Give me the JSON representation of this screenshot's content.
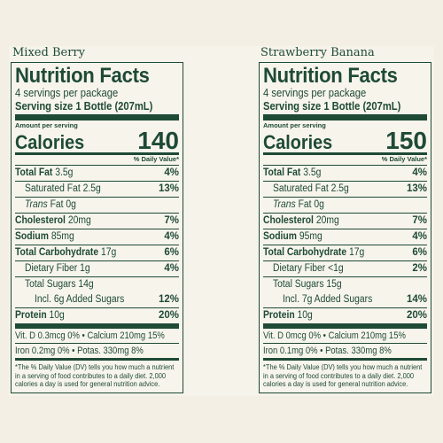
{
  "products": [
    {
      "flavor": "Mixed Berry",
      "title": "Nutrition Facts",
      "servings": "4 servings per package",
      "serving_size": "Serving size 1 Bottle (207mL)",
      "amount_per_serving": "Amount per serving",
      "calories_label": "Calories",
      "calories": "140",
      "dv_header": "% Daily Value*",
      "total_fat_label": "Total Fat",
      "total_fat_amt": "3.5g",
      "total_fat_dv": "4%",
      "sat_fat_label": "Saturated Fat 2.5g",
      "sat_fat_dv": "13%",
      "trans_fat_label": "Trans",
      "trans_fat_rest": "Fat 0g",
      "cholesterol_label": "Cholesterol",
      "cholesterol_amt": "20mg",
      "cholesterol_dv": "7%",
      "sodium_label": "Sodium",
      "sodium_amt": "85mg",
      "sodium_dv": "4%",
      "carb_label": "Total Carbohydrate",
      "carb_amt": "17g",
      "carb_dv": "6%",
      "fiber_label": "Dietary Fiber 1g",
      "fiber_dv": "4%",
      "sugars_label": "Total Sugars 14g",
      "added_sugars_label": "Incl. 6g Added Sugars",
      "added_sugars_dv": "12%",
      "protein_label": "Protein",
      "protein_amt": "10g",
      "protein_dv": "20%",
      "vit_line1": "Vit. D 0.3mcg 0% • Calcium 210mg 15%",
      "vit_line2": "Iron 0.2mg 0%   •   Potas. 330mg 8%",
      "footnote": "*The % Daily Value (DV) tells you how much a nutrient in a serving of food contributes to a daily diet. 2,000 calories a day is used for general nutrition advice."
    },
    {
      "flavor": "Strawberry Banana",
      "title": "Nutrition Facts",
      "servings": "4 servings per package",
      "serving_size": "Serving size 1 Bottle (207mL)",
      "amount_per_serving": "Amount per serving",
      "calories_label": "Calories",
      "calories": "150",
      "dv_header": "% Daily Value*",
      "total_fat_label": "Total Fat",
      "total_fat_amt": "3.5g",
      "total_fat_dv": "4%",
      "sat_fat_label": "Saturated Fat 2.5g",
      "sat_fat_dv": "13%",
      "trans_fat_label": "Trans",
      "trans_fat_rest": "Fat 0g",
      "cholesterol_label": "Cholesterol",
      "cholesterol_amt": "20mg",
      "cholesterol_dv": "7%",
      "sodium_label": "Sodium",
      "sodium_amt": "95mg",
      "sodium_dv": "4%",
      "carb_label": "Total Carbohydrate",
      "carb_amt": "17g",
      "carb_dv": "6%",
      "fiber_label": "Dietary Fiber <1g",
      "fiber_dv": "2%",
      "sugars_label": "Total Sugars 15g",
      "added_sugars_label": "Incl. 7g Added Sugars",
      "added_sugars_dv": "14%",
      "protein_label": "Protein",
      "protein_amt": "10g",
      "protein_dv": "20%",
      "vit_line1": "Vit. D 0mcg 0% • Calcium 210mg 15%",
      "vit_line2": "Iron 0.1mg 0%   •   Potas. 330mg 8%",
      "footnote": "*The % Daily Value (DV) tells you how much a nutrient in a serving of food contributes to a daily diet. 2,000 calories a day is used for general nutrition advice."
    }
  ],
  "colors": {
    "ink": "#1e4a36",
    "background": "#f3efe4"
  }
}
